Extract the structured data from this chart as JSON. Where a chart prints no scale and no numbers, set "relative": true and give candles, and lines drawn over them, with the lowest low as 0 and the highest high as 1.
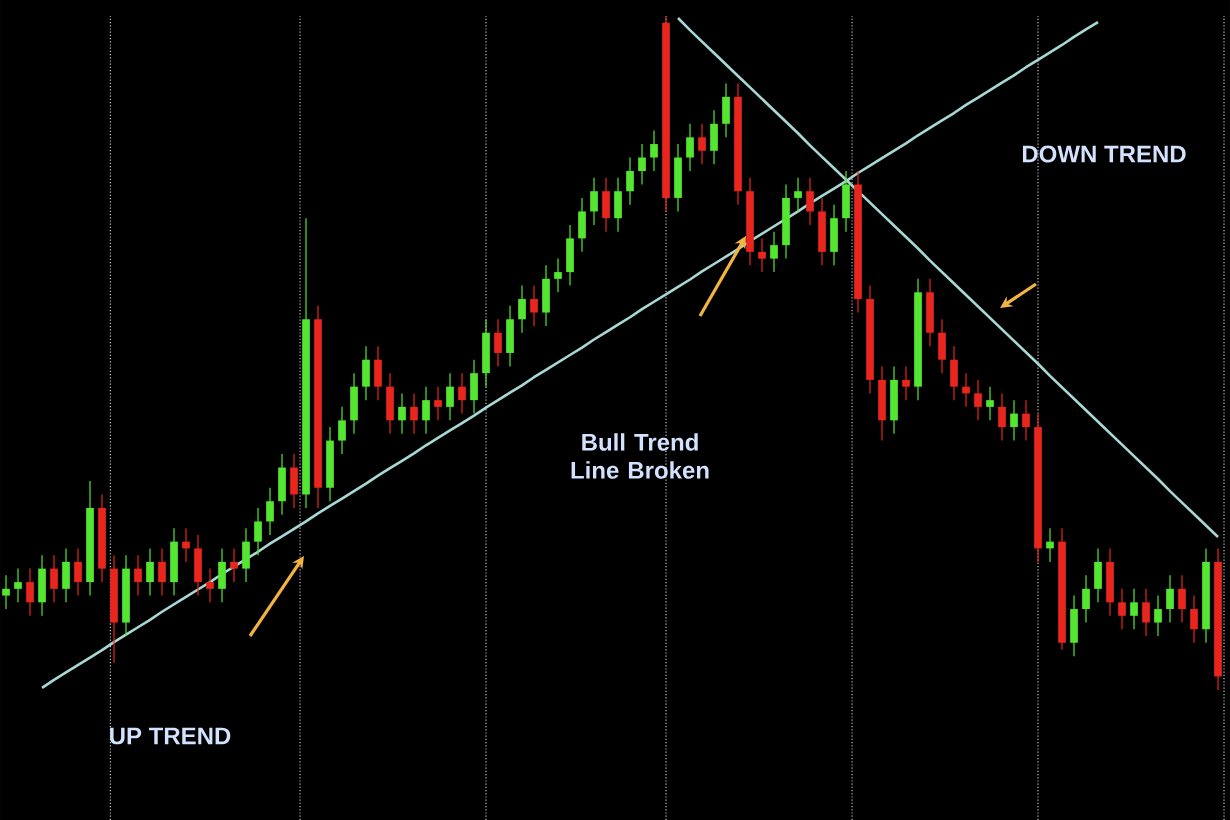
{
  "chart_data": {
    "type": "candlestick",
    "relative": true,
    "categories": [
      null,
      null,
      null,
      null,
      null,
      null,
      null,
      null,
      null,
      null,
      null,
      null,
      null,
      null,
      null,
      null,
      null,
      null,
      null,
      null,
      null,
      null,
      null,
      null,
      null,
      null,
      null,
      null,
      null,
      null,
      null,
      null,
      null,
      null,
      null,
      null,
      null,
      null,
      null,
      null,
      null,
      null,
      null,
      null,
      null,
      null,
      null,
      null,
      null,
      null,
      null,
      null,
      null,
      null,
      null,
      null,
      null,
      null,
      null,
      null,
      null,
      null,
      null,
      null,
      null,
      null,
      null,
      null,
      null,
      null,
      null,
      null,
      null,
      null,
      null,
      null,
      null,
      null,
      null,
      null,
      null,
      null,
      null,
      null,
      null,
      null,
      null,
      null,
      null,
      null,
      null,
      null,
      null,
      null,
      null,
      null,
      null,
      null,
      null,
      null,
      null,
      null
    ],
    "ohlc": [
      [
        0.14,
        0.17,
        0.12,
        0.15
      ],
      [
        0.15,
        0.18,
        0.13,
        0.16
      ],
      [
        0.16,
        0.18,
        0.11,
        0.13
      ],
      [
        0.13,
        0.2,
        0.11,
        0.18
      ],
      [
        0.18,
        0.2,
        0.13,
        0.15
      ],
      [
        0.15,
        0.21,
        0.13,
        0.19
      ],
      [
        0.19,
        0.21,
        0.14,
        0.16
      ],
      [
        0.16,
        0.31,
        0.14,
        0.27
      ],
      [
        0.27,
        0.29,
        0.16,
        0.18
      ],
      [
        0.18,
        0.2,
        0.04,
        0.1
      ],
      [
        0.1,
        0.2,
        0.08,
        0.18
      ],
      [
        0.18,
        0.2,
        0.14,
        0.16
      ],
      [
        0.16,
        0.21,
        0.14,
        0.19
      ],
      [
        0.19,
        0.21,
        0.14,
        0.16
      ],
      [
        0.16,
        0.24,
        0.14,
        0.22
      ],
      [
        0.22,
        0.24,
        0.19,
        0.21
      ],
      [
        0.21,
        0.23,
        0.14,
        0.16
      ],
      [
        0.16,
        0.18,
        0.13,
        0.15
      ],
      [
        0.15,
        0.21,
        0.13,
        0.19
      ],
      [
        0.19,
        0.21,
        0.16,
        0.18
      ],
      [
        0.18,
        0.24,
        0.16,
        0.22
      ],
      [
        0.22,
        0.27,
        0.2,
        0.25
      ],
      [
        0.25,
        0.3,
        0.23,
        0.28
      ],
      [
        0.28,
        0.35,
        0.26,
        0.33
      ],
      [
        0.33,
        0.35,
        0.27,
        0.29
      ],
      [
        0.29,
        0.7,
        0.27,
        0.55
      ],
      [
        0.55,
        0.57,
        0.27,
        0.3
      ],
      [
        0.3,
        0.39,
        0.28,
        0.37
      ],
      [
        0.37,
        0.42,
        0.35,
        0.4
      ],
      [
        0.4,
        0.47,
        0.38,
        0.45
      ],
      [
        0.45,
        0.51,
        0.43,
        0.49
      ],
      [
        0.49,
        0.51,
        0.43,
        0.45
      ],
      [
        0.45,
        0.47,
        0.38,
        0.4
      ],
      [
        0.4,
        0.44,
        0.38,
        0.42
      ],
      [
        0.42,
        0.44,
        0.38,
        0.4
      ],
      [
        0.4,
        0.45,
        0.38,
        0.43
      ],
      [
        0.43,
        0.45,
        0.4,
        0.42
      ],
      [
        0.42,
        0.47,
        0.4,
        0.45
      ],
      [
        0.45,
        0.47,
        0.41,
        0.43
      ],
      [
        0.43,
        0.49,
        0.41,
        0.47
      ],
      [
        0.47,
        0.55,
        0.45,
        0.53
      ],
      [
        0.53,
        0.55,
        0.48,
        0.5
      ],
      [
        0.5,
        0.57,
        0.48,
        0.55
      ],
      [
        0.55,
        0.6,
        0.53,
        0.58
      ],
      [
        0.58,
        0.6,
        0.54,
        0.56
      ],
      [
        0.56,
        0.63,
        0.54,
        0.61
      ],
      [
        0.61,
        0.64,
        0.59,
        0.62
      ],
      [
        0.62,
        0.69,
        0.6,
        0.67
      ],
      [
        0.67,
        0.73,
        0.65,
        0.71
      ],
      [
        0.71,
        0.76,
        0.69,
        0.74
      ],
      [
        0.74,
        0.76,
        0.68,
        0.7
      ],
      [
        0.7,
        0.76,
        0.68,
        0.74
      ],
      [
        0.74,
        0.79,
        0.72,
        0.77
      ],
      [
        0.77,
        0.81,
        0.75,
        0.79
      ],
      [
        0.79,
        0.83,
        0.77,
        0.81
      ],
      [
        0.99,
        1.0,
        0.71,
        0.73
      ],
      [
        0.73,
        0.81,
        0.71,
        0.79
      ],
      [
        0.79,
        0.84,
        0.77,
        0.82
      ],
      [
        0.82,
        0.84,
        0.78,
        0.8
      ],
      [
        0.8,
        0.86,
        0.78,
        0.84
      ],
      [
        0.84,
        0.9,
        0.82,
        0.88
      ],
      [
        0.88,
        0.9,
        0.72,
        0.74
      ],
      [
        0.74,
        0.76,
        0.63,
        0.65
      ],
      [
        0.65,
        0.67,
        0.62,
        0.64
      ],
      [
        0.64,
        0.68,
        0.62,
        0.66
      ],
      [
        0.66,
        0.75,
        0.64,
        0.73
      ],
      [
        0.73,
        0.76,
        0.71,
        0.74
      ],
      [
        0.74,
        0.76,
        0.69,
        0.71
      ],
      [
        0.71,
        0.73,
        0.63,
        0.65
      ],
      [
        0.65,
        0.72,
        0.63,
        0.7
      ],
      [
        0.7,
        0.77,
        0.68,
        0.75
      ],
      [
        0.75,
        0.77,
        0.56,
        0.58
      ],
      [
        0.58,
        0.6,
        0.44,
        0.46
      ],
      [
        0.46,
        0.48,
        0.37,
        0.4
      ],
      [
        0.4,
        0.48,
        0.38,
        0.46
      ],
      [
        0.46,
        0.48,
        0.43,
        0.45
      ],
      [
        0.45,
        0.61,
        0.43,
        0.59
      ],
      [
        0.59,
        0.61,
        0.51,
        0.53
      ],
      [
        0.53,
        0.55,
        0.47,
        0.49
      ],
      [
        0.49,
        0.51,
        0.43,
        0.45
      ],
      [
        0.45,
        0.47,
        0.42,
        0.44
      ],
      [
        0.44,
        0.46,
        0.4,
        0.42
      ],
      [
        0.42,
        0.45,
        0.4,
        0.43
      ],
      [
        0.42,
        0.44,
        0.37,
        0.39
      ],
      [
        0.39,
        0.43,
        0.37,
        0.41
      ],
      [
        0.41,
        0.43,
        0.37,
        0.39
      ],
      [
        0.39,
        0.41,
        0.19,
        0.21
      ],
      [
        0.21,
        0.24,
        0.19,
        0.22
      ],
      [
        0.22,
        0.24,
        0.06,
        0.07
      ],
      [
        0.07,
        0.14,
        0.05,
        0.12
      ],
      [
        0.12,
        0.17,
        0.1,
        0.15
      ],
      [
        0.15,
        0.21,
        0.13,
        0.19
      ],
      [
        0.19,
        0.21,
        0.11,
        0.13
      ],
      [
        0.13,
        0.15,
        0.09,
        0.11
      ],
      [
        0.11,
        0.15,
        0.09,
        0.13
      ],
      [
        0.13,
        0.15,
        0.08,
        0.1
      ],
      [
        0.1,
        0.14,
        0.08,
        0.12
      ],
      [
        0.12,
        0.17,
        0.1,
        0.15
      ],
      [
        0.15,
        0.17,
        0.1,
        0.12
      ],
      [
        0.12,
        0.14,
        0.07,
        0.09
      ],
      [
        0.09,
        0.21,
        0.07,
        0.19
      ],
      [
        0.19,
        0.21,
        0.0,
        0.02
      ]
    ],
    "series": [
      {
        "type": "line",
        "color": "#a8d8d4",
        "values": [
          null,
          null,
          null,
          0.003,
          0.015,
          0.026,
          0.037,
          0.048,
          0.059,
          0.071,
          0.082,
          0.093,
          0.104,
          0.116,
          0.127,
          0.138,
          0.149,
          0.16,
          0.172,
          0.183,
          0.194,
          0.205,
          0.217,
          0.228,
          0.239,
          0.25,
          0.262,
          0.273,
          0.284,
          0.295,
          0.306,
          0.318,
          0.329,
          0.34,
          0.351,
          0.363,
          0.374,
          0.385,
          0.396,
          0.407,
          0.419,
          0.43,
          0.441,
          0.452,
          0.464,
          0.475,
          0.486,
          0.497,
          0.508,
          0.52,
          0.531,
          0.542,
          0.553,
          0.565,
          0.576,
          0.587,
          0.598,
          0.609,
          0.621,
          0.632,
          0.643,
          0.654,
          0.666,
          0.677,
          0.688,
          0.699,
          0.71,
          0.722,
          0.733,
          0.744,
          0.755,
          0.767,
          0.778,
          0.789,
          0.8,
          0.811,
          0.823,
          0.834,
          0.845,
          0.856,
          0.868,
          0.879,
          0.89,
          0.901,
          0.912,
          0.924,
          0.935,
          0.946,
          0.957,
          0.969,
          0.98,
          0.991,
          null,
          null,
          null,
          null,
          null,
          null,
          null,
          null,
          null,
          null
        ]
      },
      {
        "type": "line",
        "color": "#a8d8d4",
        "values": [
          null,
          null,
          null,
          null,
          null,
          null,
          null,
          null,
          null,
          null,
          null,
          null,
          null,
          null,
          null,
          null,
          null,
          null,
          null,
          null,
          null,
          null,
          null,
          null,
          null,
          null,
          null,
          null,
          null,
          null,
          null,
          null,
          null,
          null,
          null,
          null,
          null,
          null,
          null,
          null,
          null,
          null,
          null,
          null,
          null,
          null,
          null,
          null,
          null,
          null,
          null,
          null,
          null,
          null,
          null,
          null,
          0.997,
          0.979,
          0.962,
          0.945,
          0.928,
          0.911,
          0.894,
          0.877,
          0.86,
          0.843,
          0.826,
          0.808,
          0.791,
          0.774,
          0.757,
          0.74,
          0.723,
          0.706,
          0.689,
          0.672,
          0.655,
          0.637,
          0.62,
          0.603,
          0.586,
          0.569,
          0.552,
          0.535,
          0.518,
          0.501,
          0.484,
          0.466,
          0.449,
          0.432,
          0.415,
          0.398,
          0.381,
          0.364,
          0.347,
          0.33,
          0.313,
          0.295,
          0.278,
          0.261,
          0.244,
          0.227
        ]
      }
    ],
    "grid": "x",
    "annotations": [
      "UP TREND",
      "Bull Trend Line Broken",
      "DOWN TREND"
    ]
  }
}
